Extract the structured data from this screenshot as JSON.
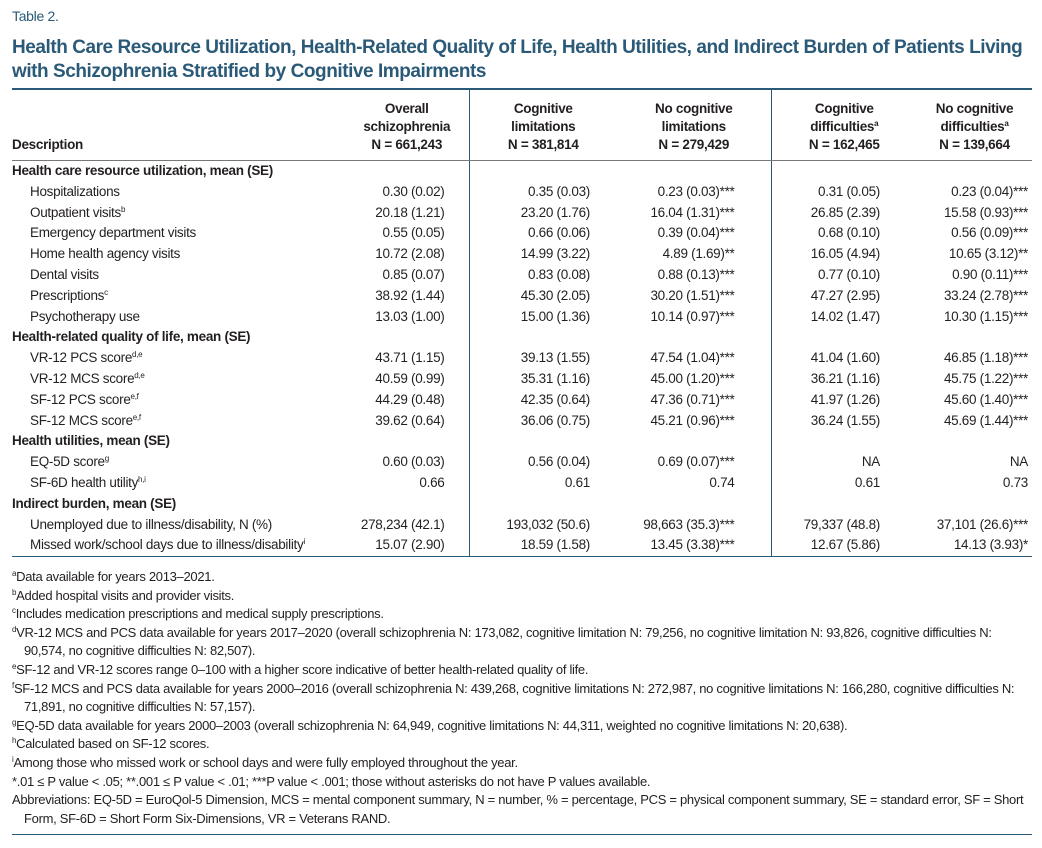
{
  "label": "Table 2.",
  "title": "Health Care Resource Utilization, Health-Related Quality of Life, Health Utilities, and Indirect Burden of Patients Living with Schizophrenia Stratified by Cognitive Impairments",
  "table": {
    "header": {
      "description": "Description",
      "columns": [
        {
          "lines": [
            "Overall",
            "schizophrenia"
          ],
          "n": "N = 661,243"
        },
        {
          "lines": [
            "Cognitive",
            "limitations"
          ],
          "n": "N = 381,814"
        },
        {
          "lines": [
            "No cognitive",
            "limitations"
          ],
          "n": "N = 279,429"
        },
        {
          "lines": [
            "Cognitive",
            "difficulties"
          ],
          "sup": "a",
          "n": "N = 162,465"
        },
        {
          "lines": [
            "No cognitive",
            "difficulties"
          ],
          "sup": "a",
          "n": "N = 139,664"
        }
      ]
    },
    "sections": [
      {
        "heading": "Health care resource utilization, mean (SE)",
        "rows": [
          {
            "label": "Hospitalizations",
            "cells": [
              "0.30 (0.02)",
              "0.35 (0.03)",
              "0.23 (0.03)***",
              "0.31 (0.05)",
              "0.23 (0.04)***"
            ]
          },
          {
            "label": "Outpatient visits",
            "sup": "b",
            "cells": [
              "20.18 (1.21)",
              "23.20 (1.76)",
              "16.04 (1.31)***",
              "26.85 (2.39)",
              "15.58 (0.93)***"
            ]
          },
          {
            "label": "Emergency department visits",
            "cells": [
              "0.55 (0.05)",
              "0.66 (0.06)",
              "0.39 (0.04)***",
              "0.68 (0.10)",
              "0.56 (0.09)***"
            ]
          },
          {
            "label": "Home health agency visits",
            "cells": [
              "10.72 (2.08)",
              "14.99 (3.22)",
              "4.89 (1.69)**",
              "16.05 (4.94)",
              "10.65 (3.12)**"
            ]
          },
          {
            "label": "Dental visits",
            "cells": [
              "0.85 (0.07)",
              "0.83 (0.08)",
              "0.88 (0.13)***",
              "0.77 (0.10)",
              "0.90 (0.11)***"
            ]
          },
          {
            "label": "Prescriptions",
            "sup": "c",
            "cells": [
              "38.92 (1.44)",
              "45.30 (2.05)",
              "30.20 (1.51)***",
              "47.27 (2.95)",
              "33.24 (2.78)***"
            ]
          },
          {
            "label": "Psychotherapy use",
            "cells": [
              "13.03 (1.00)",
              "15.00 (1.36)",
              "10.14 (0.97)***",
              "14.02 (1.47)",
              "10.30 (1.15)***"
            ]
          }
        ]
      },
      {
        "heading": "Health-related quality of life, mean (SE)",
        "rows": [
          {
            "label": "VR-12 PCS score",
            "sup": "d,e",
            "cells": [
              "43.71 (1.15)",
              "39.13 (1.55)",
              "47.54 (1.04)***",
              "41.04 (1.60)",
              "46.85 (1.18)***"
            ]
          },
          {
            "label": "VR-12 MCS score",
            "sup": "d,e",
            "cells": [
              "40.59 (0.99)",
              "35.31 (1.16)",
              "45.00 (1.20)***",
              "36.21 (1.16)",
              "45.75 (1.22)***"
            ]
          },
          {
            "label": "SF-12 PCS score",
            "sup": "e,f",
            "cells": [
              "44.29 (0.48)",
              "42.35 (0.64)",
              "47.36 (0.71)***",
              "41.97 (1.26)",
              "45.60 (1.40)***"
            ]
          },
          {
            "label": "SF-12 MCS score",
            "sup": "e,f",
            "cells": [
              "39.62 (0.64)",
              "36.06 (0.75)",
              "45.21 (0.96)***",
              "36.24 (1.55)",
              "45.69 (1.44)***"
            ]
          }
        ]
      },
      {
        "heading": "Health utilities, mean (SE)",
        "rows": [
          {
            "label": "EQ-5D score",
            "sup": "g",
            "cells": [
              "0.60 (0.03)",
              "0.56 (0.04)",
              "0.69 (0.07)***",
              "NA",
              "NA"
            ]
          },
          {
            "label": "SF-6D health utility",
            "sup": "h,i",
            "cells": [
              "0.66",
              "0.61",
              "0.74",
              "0.61",
              "0.73"
            ]
          }
        ]
      },
      {
        "heading": "Indirect burden, mean (SE)",
        "rows": [
          {
            "label": "Unemployed due to illness/disability, N (%)",
            "cells": [
              "278,234 (42.1)",
              "193,032 (50.6)",
              "98,663 (35.3)***",
              "79,337 (48.8)",
              "37,101 (26.6)***"
            ]
          },
          {
            "label": "Missed work/school days due to illness/disability",
            "sup": "i",
            "cells": [
              "15.07 (2.90)",
              "18.59 (1.58)",
              "13.45 (3.38)***",
              "12.67 (5.86)",
              "14.13 (3.93)*"
            ]
          }
        ]
      }
    ]
  },
  "footnotes": [
    {
      "sup": "a",
      "text": "Data available for years 2013–2021."
    },
    {
      "sup": "b",
      "text": "Added hospital visits and provider visits."
    },
    {
      "sup": "c",
      "text": "Includes medication prescriptions and medical supply prescriptions."
    },
    {
      "sup": "d",
      "text": "VR-12 MCS and PCS data available for years 2017–2020 (overall schizophrenia N: 173,082, cognitive limitation N: 79,256, no cognitive limitation N: 93,826, cognitive difficulties N: 90,574, no cognitive difficulties N: 82,507)."
    },
    {
      "sup": "e",
      "text": "SF-12 and VR-12 scores range 0–100 with a higher score indicative of better health-related quality of life."
    },
    {
      "sup": "f",
      "text": "SF-12 MCS and PCS data available for years 2000–2016 (overall schizophrenia N: 439,268, cognitive limitations N: 272,987, no cognitive limitations N: 166,280, cognitive difficulties N: 71,891, no cognitive difficulties N: 57,157)."
    },
    {
      "sup": "g",
      "text": "EQ-5D data available for years 2000–2003 (overall schizophrenia N: 64,949, cognitive limitations N: 44,311, weighted no cognitive limitations N: 20,638)."
    },
    {
      "sup": "h",
      "text": "Calculated based on SF-12 scores."
    },
    {
      "sup": "i",
      "text": "Among those who missed work or school days and were fully employed throughout the year."
    },
    {
      "text": "*.01 ≤ P value < .05; **.001 ≤ P value < .01; ***P value < .001; those without asterisks do not have P values available."
    },
    {
      "text": "Abbreviations: EQ-5D = EuroQol-5 Dimension, MCS = mental component summary, N = number, % = percentage, PCS = physical component summary, SE = standard error, SF = Short Form, SF-6D = Short Form Six-Dimensions, VR = Veterans RAND."
    }
  ]
}
